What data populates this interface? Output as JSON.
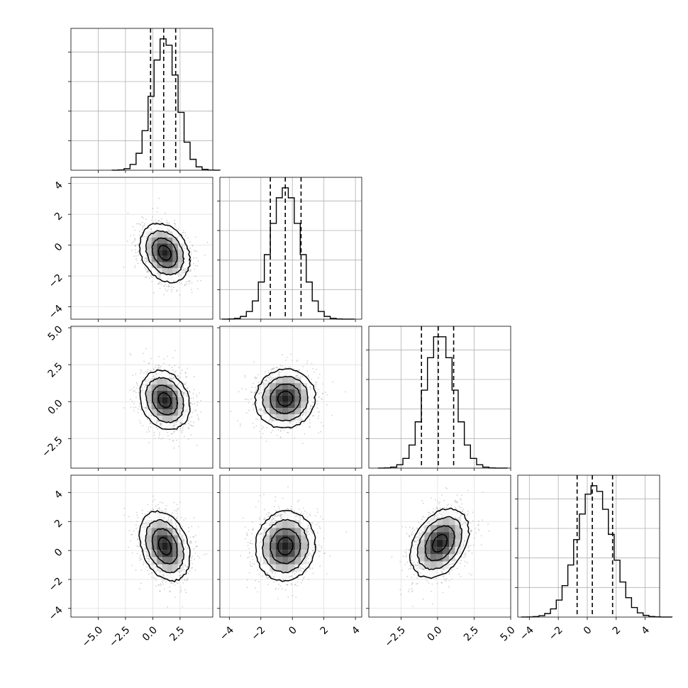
{
  "chart_data": {
    "type": "corner",
    "grid": true,
    "colors": {
      "line": "#000000",
      "grid": "#b0b0b0",
      "scatter": "#9a9a9a",
      "density_dark": "#000000",
      "density_light": "#ffffff"
    },
    "quantiles_note_hidden": false,
    "parameters": [
      {
        "xlim": [
          -7.5,
          5.5
        ],
        "ticks": [
          -5.0,
          -2.5,
          0.0,
          2.5
        ],
        "tick_labels": [
          "−5.0",
          "−2.5",
          "0.0",
          "2.5"
        ],
        "center": [
          1.1,
          0
        ],
        "sd": 1.15,
        "quantiles": [
          -0.2,
          1.0,
          2.1
        ],
        "hist_bin_width": 0.55
      },
      {
        "xlim": [
          -4.6,
          4.4
        ],
        "ticks": [
          -4,
          -2,
          0,
          2,
          4
        ],
        "tick_labels": [
          "−4",
          "−2",
          "0",
          "2",
          "4"
        ],
        "center": -0.45,
        "sd": 0.95,
        "quantiles": [
          -1.4,
          -0.45,
          0.55
        ],
        "hist_bin_width": 0.38
      },
      {
        "xlim": [
          -4.7,
          5.0
        ],
        "ticks": [
          -2.5,
          0.0,
          2.5,
          5.0
        ],
        "tick_labels": [
          "−2.5",
          "0.0",
          "2.5",
          "5.0"
        ],
        "center": 0.15,
        "sd": 1.0,
        "quantiles": [
          -1.1,
          0.05,
          1.1
        ],
        "hist_bin_width": 0.42
      },
      {
        "xlim": [
          -4.8,
          5.0
        ],
        "ticks": [
          -4,
          -2,
          0,
          2,
          4
        ],
        "tick_labels": [
          "−4",
          "−2",
          "0",
          "2",
          "4"
        ],
        "center": 0.5,
        "sd": 1.2,
        "quantiles": [
          -0.7,
          0.35,
          1.75
        ],
        "hist_bin_width": 0.4
      }
    ],
    "pairs": [
      {
        "row": 1,
        "col": 0,
        "x_center": 1.1,
        "y_center": -0.5,
        "correlation": -0.25
      },
      {
        "row": 2,
        "col": 0,
        "x_center": 1.1,
        "y_center": 0.1,
        "correlation": -0.2
      },
      {
        "row": 2,
        "col": 1,
        "x_center": -0.45,
        "y_center": 0.2,
        "correlation": 0.05
      },
      {
        "row": 3,
        "col": 0,
        "x_center": 1.1,
        "y_center": 0.3,
        "correlation": -0.3
      },
      {
        "row": 3,
        "col": 1,
        "x_center": -0.45,
        "y_center": 0.3,
        "correlation": 0.05
      },
      {
        "row": 3,
        "col": 2,
        "x_center": 0.15,
        "y_center": 0.5,
        "correlation": 0.35
      }
    ],
    "y_axes": [
      {
        "row": 1,
        "ylim": [
          -4.8,
          4.4
        ],
        "ticks": [
          -4,
          -2,
          0,
          2,
          4
        ],
        "tick_labels": [
          "−4",
          "−2",
          "0",
          "2",
          "4"
        ]
      },
      {
        "row": 2,
        "ylim": [
          -4.5,
          5.1
        ],
        "ticks": [
          -2.5,
          0.0,
          2.5,
          5.0
        ],
        "tick_labels": [
          "−2.5",
          "0.0",
          "2.5",
          "5.0"
        ]
      },
      {
        "row": 3,
        "ylim": [
          -4.6,
          5.2
        ],
        "ticks": [
          -4,
          -2,
          0,
          2,
          4
        ],
        "tick_labels": [
          "−4",
          "−2",
          "0",
          "2",
          "4"
        ]
      }
    ],
    "x_axes_bottom_row": [
      0,
      1,
      2,
      3
    ]
  }
}
